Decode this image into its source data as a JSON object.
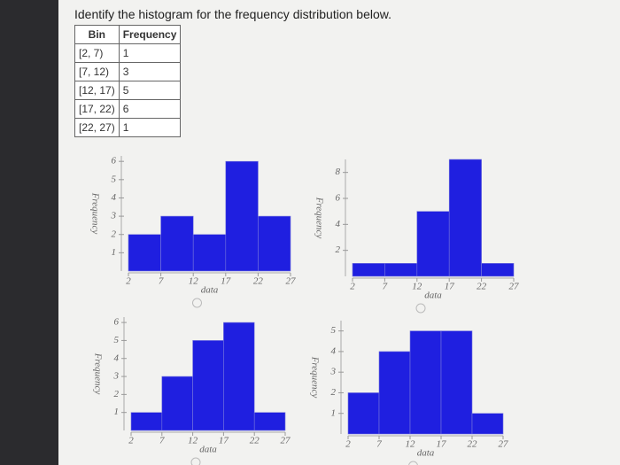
{
  "question": "Identify the histogram for the frequency distribution below.",
  "table": {
    "header": [
      "Bin",
      "Frequency"
    ],
    "rows": [
      [
        "[2, 7)",
        1
      ],
      [
        "[7, 12)",
        3
      ],
      [
        "[12, 17)",
        5
      ],
      [
        "[17, 22)",
        6
      ],
      [
        "[22, 27)",
        1
      ]
    ]
  },
  "charts": [
    {
      "type": "histogram",
      "bins": [
        2,
        7,
        12,
        17,
        22,
        27
      ],
      "counts": [
        2,
        3,
        2,
        6,
        3
      ],
      "color": "#1f1fe0",
      "xlim": [
        2,
        27
      ],
      "xticks": [
        2,
        7,
        12,
        17,
        22,
        27
      ],
      "ylim": [
        0,
        6.3
      ],
      "yticks": [
        1,
        2,
        3,
        4,
        5,
        6
      ],
      "xlabel": "data",
      "ylabel": "Frequency"
    },
    {
      "type": "histogram",
      "bins": [
        2,
        7,
        12,
        17,
        22,
        27
      ],
      "counts": [
        1,
        1,
        5,
        9,
        1
      ],
      "color": "#1f1fe0",
      "xlim": [
        2,
        27
      ],
      "xticks": [
        2,
        7,
        12,
        17,
        22,
        27
      ],
      "ylim": [
        0,
        9
      ],
      "yticks": [
        2,
        4,
        6,
        8
      ],
      "xlabel": "data",
      "ylabel": "Frequency"
    },
    {
      "type": "histogram",
      "bins": [
        2,
        7,
        12,
        17,
        22,
        27
      ],
      "counts": [
        1,
        3,
        5,
        6,
        1
      ],
      "color": "#1f1fe0",
      "xlim": [
        2,
        27
      ],
      "xticks": [
        2,
        7,
        12,
        17,
        22,
        27
      ],
      "ylim": [
        0,
        6.3
      ],
      "yticks": [
        1,
        2,
        3,
        4,
        5,
        6
      ],
      "xlabel": "data",
      "ylabel": "Frequency"
    },
    {
      "type": "histogram",
      "bins": [
        2,
        7,
        12,
        17,
        22,
        27
      ],
      "counts": [
        2,
        4,
        5,
        5,
        1
      ],
      "color": "#1f1fe0",
      "xlim": [
        2,
        27
      ],
      "xticks": [
        2,
        7,
        12,
        17,
        22,
        27
      ],
      "ylim": [
        0,
        5.5
      ],
      "yticks": [
        1,
        2,
        3,
        4,
        5
      ],
      "xlabel": "data",
      "ylabel": "Frequency"
    }
  ]
}
